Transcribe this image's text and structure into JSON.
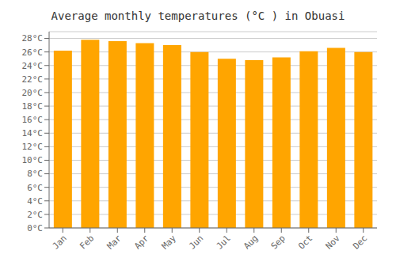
{
  "chart_data": {
    "type": "bar",
    "title": "Average monthly temperatures (°C ) in Obuasi",
    "categories": [
      "Jan",
      "Feb",
      "Mar",
      "Apr",
      "May",
      "Jun",
      "Jul",
      "Aug",
      "Sep",
      "Oct",
      "Nov",
      "Dec"
    ],
    "values": [
      26.2,
      27.8,
      27.6,
      27.3,
      27.0,
      26.0,
      25.0,
      24.8,
      25.2,
      26.1,
      26.6,
      26.0
    ],
    "color": "#FFA500",
    "ylim": [
      0,
      29
    ],
    "yticks": [
      {
        "value": 0,
        "label": "0°C"
      },
      {
        "value": 2,
        "label": "2°C"
      },
      {
        "value": 4,
        "label": "4°C"
      },
      {
        "value": 6,
        "label": "6°C"
      },
      {
        "value": 8,
        "label": "8°C"
      },
      {
        "value": 10,
        "label": "10°C"
      },
      {
        "value": 12,
        "label": "12°C"
      },
      {
        "value": 14,
        "label": "14°C"
      },
      {
        "value": 16,
        "label": "16°C"
      },
      {
        "value": 18,
        "label": "18°C"
      },
      {
        "value": 20,
        "label": "20°C"
      },
      {
        "value": 22,
        "label": "22°C"
      },
      {
        "value": 24,
        "label": "24°C"
      },
      {
        "value": 26,
        "label": "26°C"
      },
      {
        "value": 28,
        "label": "28°C"
      }
    ],
    "grid": true
  }
}
